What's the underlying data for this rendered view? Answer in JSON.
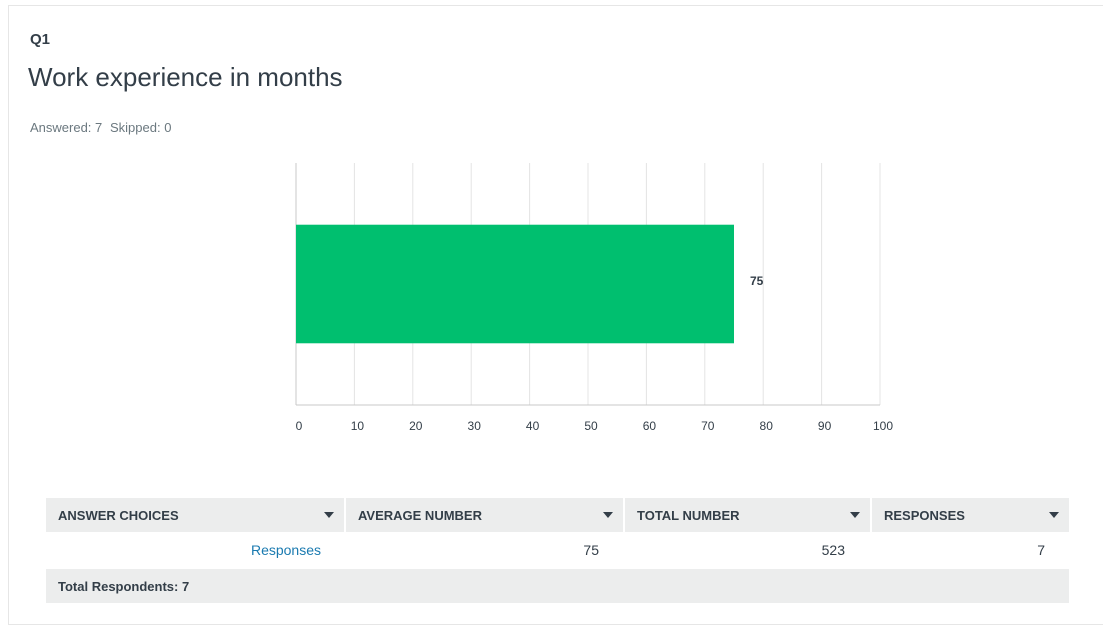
{
  "header": {
    "question": "Q1",
    "title": "Work experience in months",
    "answered": "Answered: 7",
    "skipped": "Skipped: 0"
  },
  "chart_data": {
    "type": "bar",
    "orientation": "horizontal",
    "categories": [
      null
    ],
    "values": [
      75
    ],
    "color": "#00bf6f",
    "xlim": [
      0,
      100
    ],
    "xticks": [
      0,
      10,
      20,
      30,
      40,
      50,
      60,
      70,
      80,
      90,
      100
    ],
    "grid": true
  },
  "table": {
    "columns": [
      "ANSWER CHOICES",
      "AVERAGE NUMBER",
      "TOTAL NUMBER",
      "RESPONSES"
    ],
    "rows": [
      [
        "Responses",
        75,
        523,
        7
      ]
    ],
    "footer": "Total Respondents: 7"
  }
}
